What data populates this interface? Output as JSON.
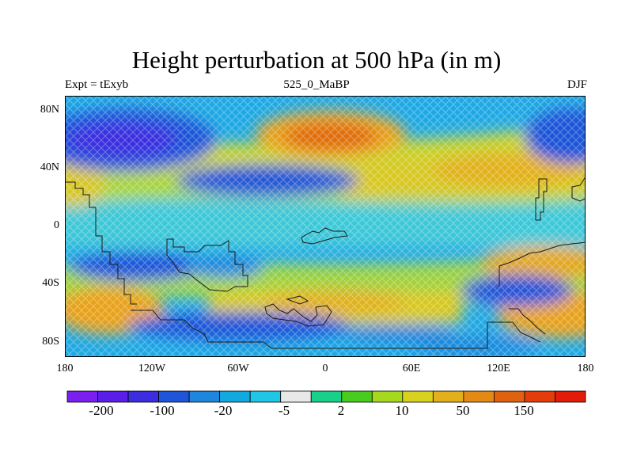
{
  "title": "Height perturbation at 500 hPa (in m)",
  "subtitle_left": "Expt = tExyb",
  "subtitle_center": "525_0_MaBP",
  "subtitle_right": "DJF",
  "lat_labels": [
    "80N",
    "40N",
    "0",
    "40S",
    "80S"
  ],
  "lon_labels": [
    "180",
    "120W",
    "60W",
    "0",
    "60E",
    "120E",
    "180"
  ],
  "colorbar": {
    "colors": [
      "#7a1ff0",
      "#5a1ee8",
      "#3a2ee0",
      "#1f55d8",
      "#1f86dd",
      "#12a9e0",
      "#20c6e6",
      "#e8e8e8",
      "#18d08a",
      "#48cc1e",
      "#a6d81e",
      "#d8d21e",
      "#e2b01a",
      "#e48a14",
      "#e0620e",
      "#e33e0a",
      "#e21c08"
    ],
    "labels": [
      "-200",
      "-100",
      "-20",
      "-5",
      "2",
      "10",
      "50",
      "150"
    ]
  }
}
